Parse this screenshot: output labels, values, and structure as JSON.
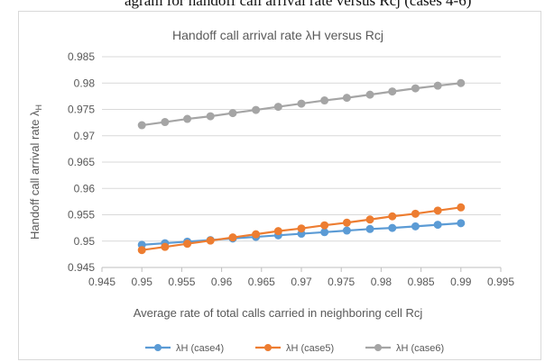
{
  "caption": "agram for handoff call arrival rate versus Rcj (cases 4-6)",
  "colors": {
    "case4": "#5b9bd5",
    "case5": "#ed7d31",
    "case6": "#a5a5a5",
    "grid": "#d9d9d9",
    "axis": "#bfbfbf"
  },
  "chart_data": {
    "type": "line",
    "title": "Handoff call arrival rate λH versus Rcj",
    "xlabel": "Average rate of total calls carried in neighboring cell Rcj",
    "ylabel": "Handoff call arrival rate λ",
    "ylabel_sub": "H",
    "xlim": [
      0.945,
      0.995
    ],
    "ylim": [
      0.945,
      0.985
    ],
    "xticks": [
      "0.945",
      "0.95",
      "0.955",
      "0.96",
      "0.965",
      "0.97",
      "0.975",
      "0.98",
      "0.985",
      "0.99",
      "0.995"
    ],
    "yticks": [
      "0.945",
      "0.95",
      "0.955",
      "0.96",
      "0.965",
      "0.97",
      "0.975",
      "0.98",
      "0.985"
    ],
    "grid": "horizontal",
    "legend_position": "bottom",
    "x": [
      0.95,
      0.9529,
      0.9557,
      0.9586,
      0.9614,
      0.9643,
      0.9671,
      0.97,
      0.9729,
      0.9757,
      0.9786,
      0.9814,
      0.9843,
      0.9871,
      0.99
    ],
    "series": [
      {
        "name": "λH (case4)",
        "values": [
          0.9493,
          0.9496,
          0.9499,
          0.9502,
          0.9505,
          0.9508,
          0.9511,
          0.9514,
          0.9517,
          0.952,
          0.9523,
          0.9525,
          0.9528,
          0.9531,
          0.9534
        ]
      },
      {
        "name": "λH (case5)",
        "values": [
          0.9483,
          0.9489,
          0.9495,
          0.9501,
          0.9507,
          0.9513,
          0.9519,
          0.9524,
          0.953,
          0.9535,
          0.9541,
          0.9547,
          0.9552,
          0.9558,
          0.9564
        ]
      },
      {
        "name": "λH (case6)",
        "values": [
          0.972,
          0.9726,
          0.9732,
          0.9737,
          0.9743,
          0.9749,
          0.9755,
          0.9761,
          0.9767,
          0.9772,
          0.9778,
          0.9784,
          0.979,
          0.9795,
          0.98
        ]
      }
    ]
  }
}
